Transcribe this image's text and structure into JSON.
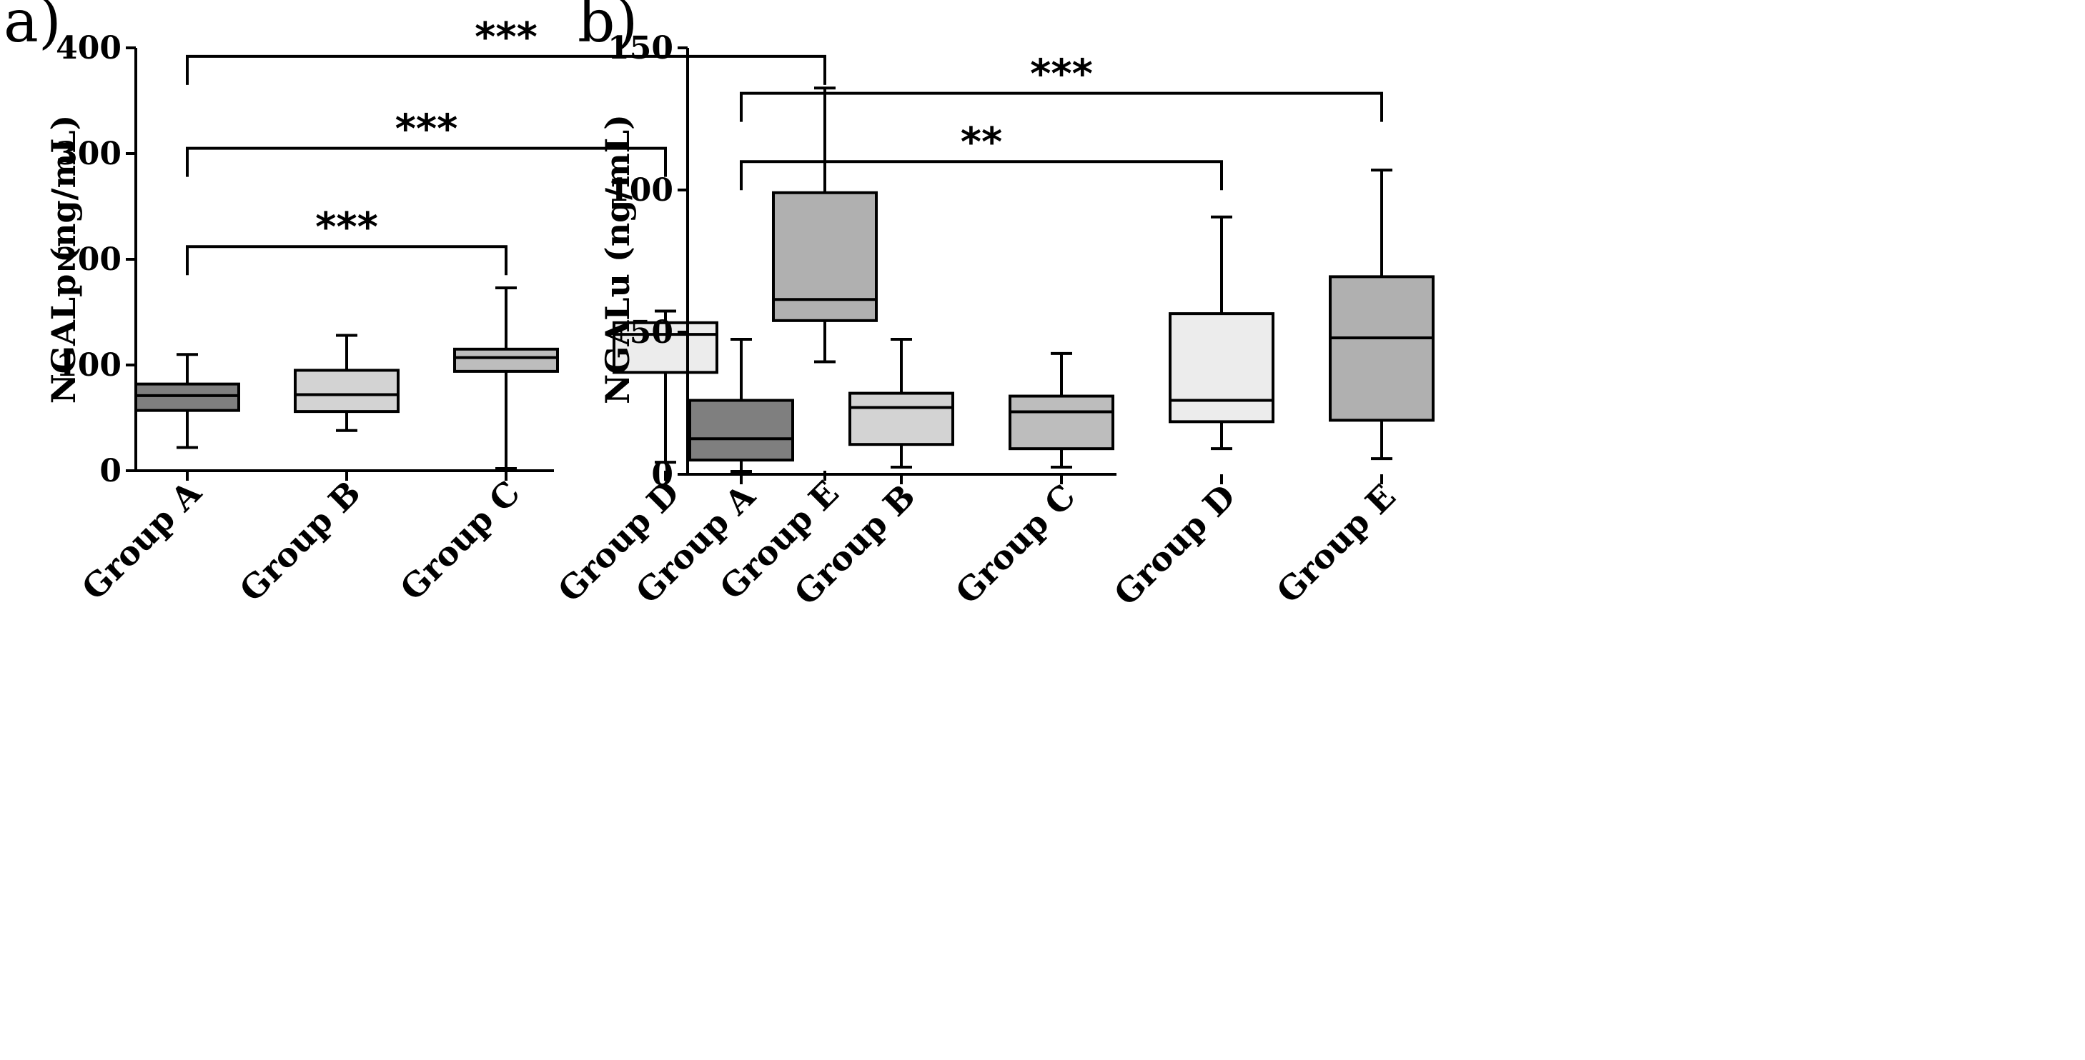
{
  "chart_data": [
    {
      "type": "boxplot",
      "panel_label": "a)",
      "title": "",
      "xlabel": "",
      "ylabel": "NGALp (ng/mL)",
      "ylim": [
        0,
        400
      ],
      "yticks": [
        0,
        100,
        200,
        300,
        400
      ],
      "categories": [
        "Group A",
        "Group B",
        "Group C",
        "Group D",
        "Group E"
      ],
      "boxes": [
        {
          "min": 22,
          "q1": 57,
          "median": 71,
          "q3": 82,
          "max": 110,
          "color": "#7f7f7f"
        },
        {
          "min": 38,
          "q1": 56,
          "median": 72,
          "q3": 95,
          "max": 128,
          "color": "#d3d3d3"
        },
        {
          "min": 2,
          "q1": 94,
          "median": 107,
          "q3": 115,
          "max": 173,
          "color": "#bdbdbd"
        },
        {
          "min": 8,
          "q1": 93,
          "median": 129,
          "q3": 140,
          "max": 151,
          "color": "#ececec"
        },
        {
          "min": 103,
          "q1": 142,
          "median": 162,
          "q3": 263,
          "max": 362,
          "color": "#b0b0b0"
        }
      ],
      "significance": [
        {
          "from": 0,
          "to": 2,
          "label": "***",
          "y": 212
        },
        {
          "from": 0,
          "to": 3,
          "label": "***",
          "y": 305
        },
        {
          "from": 0,
          "to": 4,
          "label": "***",
          "y": 392
        }
      ]
    },
    {
      "type": "boxplot",
      "panel_label": "b)",
      "title": "",
      "xlabel": "",
      "ylabel": "NGALu (ng/mL)",
      "ylim": [
        0,
        150
      ],
      "yticks": [
        0,
        50,
        100,
        150
      ],
      "categories": [
        "Group A",
        "Group B",
        "Group C",
        "Group D",
        "Group E"
      ],
      "boxes": [
        {
          "min": 1,
          "q1": 5,
          "median": 12.5,
          "q3": 26,
          "max": 47.5,
          "color": "#7f7f7f"
        },
        {
          "min": 2.5,
          "q1": 10.5,
          "median": 23.5,
          "q3": 28.5,
          "max": 47.5,
          "color": "#d3d3d3"
        },
        {
          "min": 2.5,
          "q1": 9,
          "median": 22,
          "q3": 27.5,
          "max": 42.5,
          "color": "#bdbdbd"
        },
        {
          "min": 9,
          "q1": 18.5,
          "median": 26,
          "q3": 56.5,
          "max": 90.5,
          "color": "#ececec"
        },
        {
          "min": 5.5,
          "q1": 19,
          "median": 48,
          "q3": 69.5,
          "max": 107,
          "color": "#b0b0b0"
        }
      ],
      "significance": [
        {
          "from": 0,
          "to": 3,
          "label": "**",
          "y": 110
        },
        {
          "from": 0,
          "to": 4,
          "label": "***",
          "y": 134
        }
      ]
    }
  ]
}
